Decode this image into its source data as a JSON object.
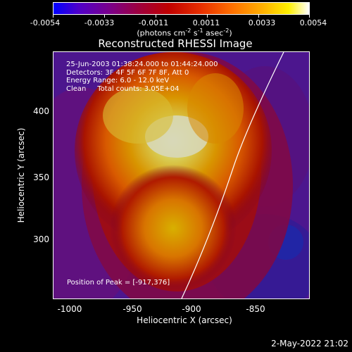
{
  "colorbar": {
    "ticks": [
      "-0.0054",
      "-0.0033",
      "-0.0011",
      "0.0011",
      "0.0033",
      "0.0054"
    ],
    "units": "(photons cm",
    "units_exp1": "-2",
    "units_mid": " s",
    "units_exp2": "-1",
    "units_mid2": " asec",
    "units_exp3": "-2",
    "units_end": ")"
  },
  "title": "Reconstructed RHESSI Image",
  "info": {
    "line1": "25-Jun-2003 01:38:24.000 to 01:44:24.000",
    "line2": "Detectors: 3F 4F 5F 6F 7F 8F, Att 0",
    "line3": "Energy Range: 6.0 - 12.0 keV",
    "line4": "Clean     Total counts: 3.05E+04"
  },
  "peak_text": "Position of Peak = [-917,376]",
  "axes": {
    "ylabel": "Heliocentric Y (arcsec)",
    "xlabel": "Heliocentric X (arcsec)",
    "yticks": [
      "400",
      "350",
      "300"
    ],
    "xticks": [
      "-1000",
      "-950",
      "-900",
      "-850"
    ]
  },
  "datestamp": "2-May-2022 21:02"
}
